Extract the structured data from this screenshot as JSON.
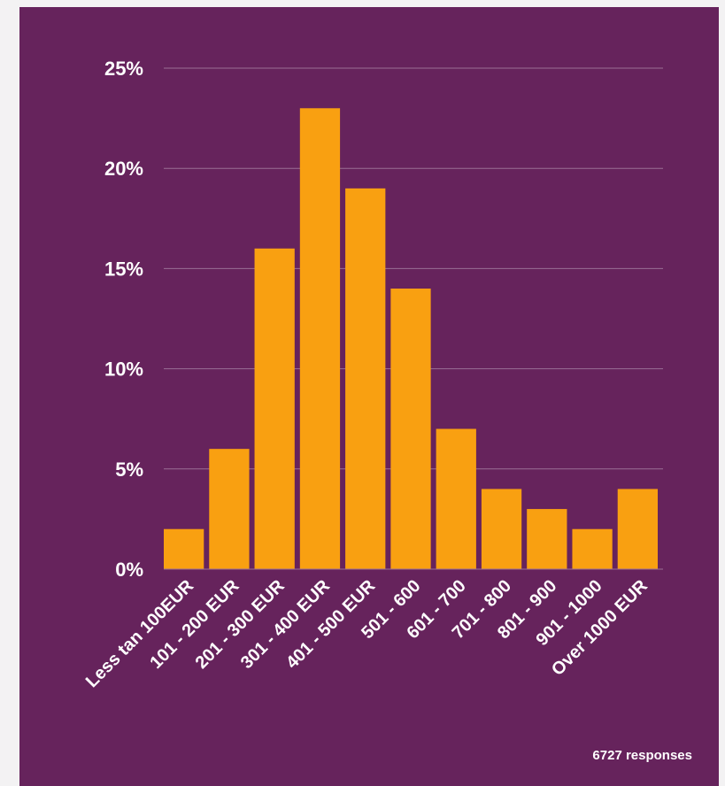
{
  "chart_data": {
    "type": "bar",
    "categories": [
      "Less tan 100EUR",
      "101 - 200 EUR",
      "201 - 300 EUR",
      "301 - 400 EUR",
      "401 - 500 EUR",
      "501 - 600",
      "601 - 700",
      "701 - 800",
      "801 - 900",
      "901 - 1000",
      "Over 1000 EUR"
    ],
    "values": [
      2,
      6,
      16,
      23,
      19,
      14,
      7,
      4,
      3,
      2,
      4
    ],
    "yticks": [
      "0%",
      "5%",
      "10%",
      "15%",
      "20%",
      "25%"
    ],
    "ylim": [
      0,
      25
    ],
    "grid": true,
    "footnote": "6727 responses"
  },
  "colors": {
    "background": "#66235c",
    "bar": "#f9a011",
    "grid": "#9a6f95",
    "text": "#ffffff"
  }
}
